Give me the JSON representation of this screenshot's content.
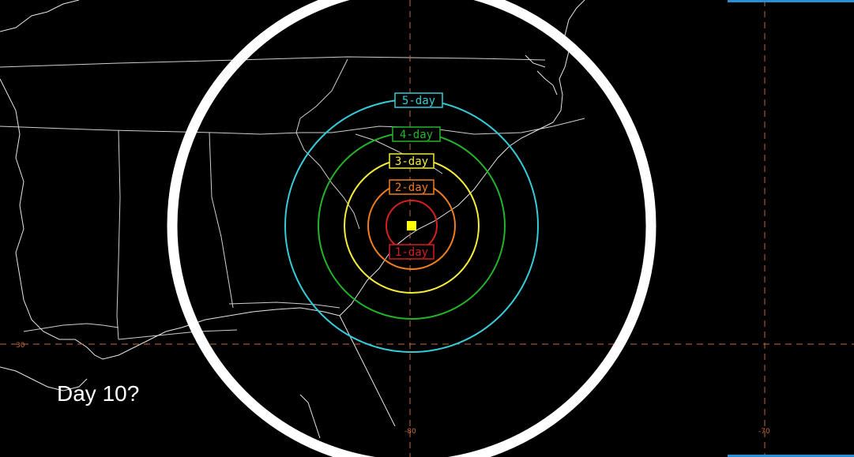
{
  "colors": {
    "background": "#000000",
    "grid": "#c06a3a",
    "center": "#ffff00",
    "accent_bar": "#2b8fd6",
    "big_circle": "#ffffff"
  },
  "grid_labels": {
    "lat_30": "30",
    "lon_80": "-80",
    "lon_70": "-70"
  },
  "cones": [
    {
      "label": "1-day",
      "color": "#d42020"
    },
    {
      "label": "2-day",
      "color": "#f07d1e"
    },
    {
      "label": "3-day",
      "color": "#f5ec3a"
    },
    {
      "label": "4-day",
      "color": "#22b52a"
    },
    {
      "label": "5-day",
      "color": "#36cbd8"
    }
  ],
  "overlay": {
    "question": "Day 10?"
  },
  "center_marker": {
    "icon": "square-marker"
  }
}
